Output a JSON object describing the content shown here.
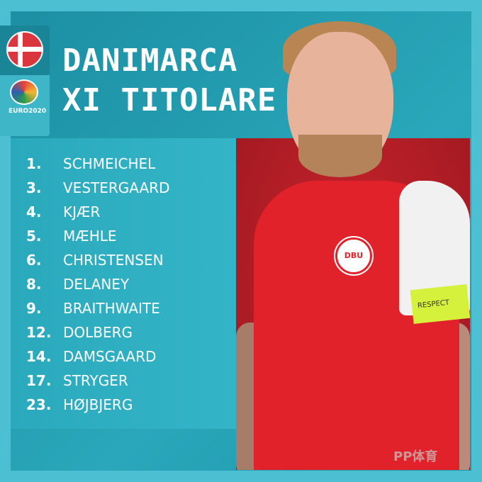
{
  "title": {
    "line1": "DANIMARCA",
    "line2": "XI TITOLARE"
  },
  "badges": {
    "flag": "denmark-flag",
    "logo_text": "EURO2020"
  },
  "players": [
    {
      "number": "1.",
      "name": "SCHMEICHEL"
    },
    {
      "number": "3.",
      "name": "VESTERGAARD"
    },
    {
      "number": "4.",
      "name": "KJÆR"
    },
    {
      "number": "5.",
      "name": "MÆHLE"
    },
    {
      "number": "6.",
      "name": "CHRISTENSEN"
    },
    {
      "number": "8.",
      "name": "DELANEY"
    },
    {
      "number": "9.",
      "name": "BRAITHWAITE"
    },
    {
      "number": "12.",
      "name": "DOLBERG"
    },
    {
      "number": "14.",
      "name": "DAMSGAARD"
    },
    {
      "number": "17.",
      "name": "STRYGER"
    },
    {
      "number": "23.",
      "name": "HØJBJERG"
    }
  ],
  "photo": {
    "crest_text": "DBU",
    "armband_text": "RESPECT"
  },
  "watermark": "PP体育",
  "colors": {
    "outer": "#4cbfd2",
    "panel": "#2aa7ba",
    "shirt": "#e1222b",
    "armband": "#d6f13c"
  }
}
